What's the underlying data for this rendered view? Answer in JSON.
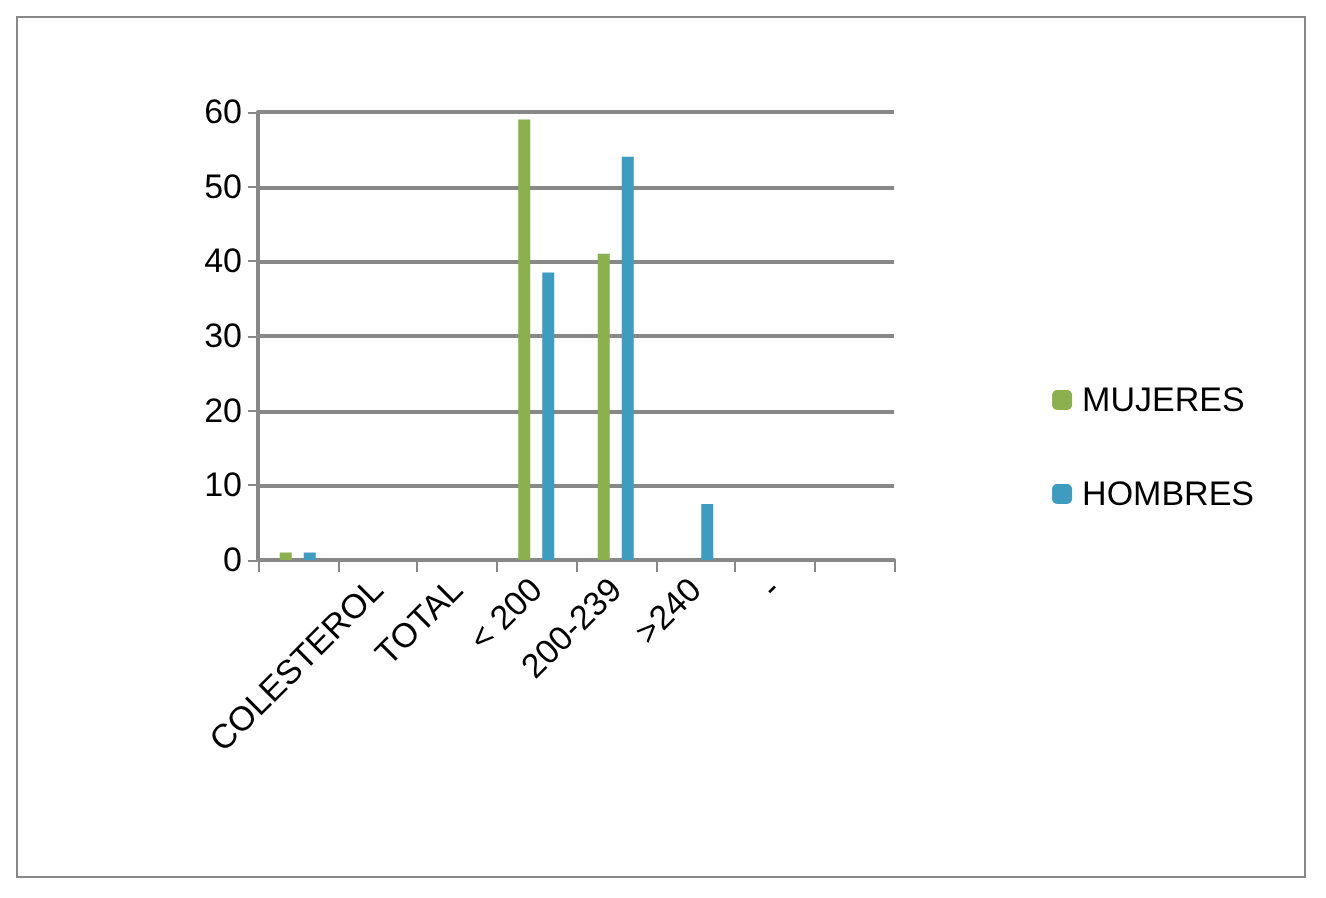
{
  "chart_data": {
    "type": "bar",
    "categories": [
      null,
      "COLESTEROL",
      "TOTAL",
      "< 200",
      "200-239",
      ">240",
      "-",
      null
    ],
    "series": [
      {
        "name": "MUJERES",
        "color": "#8cb04e",
        "values": [
          1,
          0,
          0,
          59,
          41,
          0,
          0,
          0
        ]
      },
      {
        "name": "HOMBRES",
        "color": "#3d9cc0",
        "values": [
          1,
          0,
          0,
          38.5,
          54,
          7.5,
          0,
          0
        ]
      }
    ],
    "ylim": [
      0,
      60
    ],
    "yticks": [
      0,
      10,
      20,
      30,
      40,
      50,
      60
    ],
    "grid": "y",
    "legend": "right"
  }
}
